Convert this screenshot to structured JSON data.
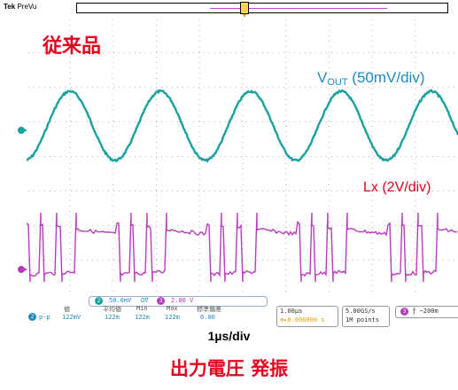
{
  "header": {
    "brand": "Tek",
    "mode": "PreVu"
  },
  "labels": {
    "title_jp": "従来品",
    "vout_main": "V",
    "vout_sub": "OUT",
    "vout_scale": " (50mV/div)",
    "lx": "Lx (2V/div)",
    "timebase": "1µs/div",
    "footer": "出力電圧 発振"
  },
  "status": {
    "ch1_num": "2",
    "ch1_scale": "50.0mV",
    "ch1_bw": "Ω∇",
    "ch3_num": "3",
    "ch3_scale": "2.00 V",
    "meas_ch": "2",
    "meas_type": "p-p",
    "meas_headers": [
      "値",
      "平均値",
      "Min",
      "Max",
      "標準偏差"
    ],
    "meas_values": [
      "122mV",
      "122m",
      "122m",
      "122m",
      "0.00"
    ],
    "time_div": "1.00µs",
    "time_offset": "⊕▸0.000000 s",
    "sample_rate": "5.00GS/s",
    "record_len": "1M points",
    "trig_ch": "3",
    "trig_level": "−200m"
  },
  "colors": {
    "ch1": "#19a19f",
    "ch3": "#b83bbf",
    "accent": "#e8001c",
    "vout_label": "#1f8ac4"
  }
}
